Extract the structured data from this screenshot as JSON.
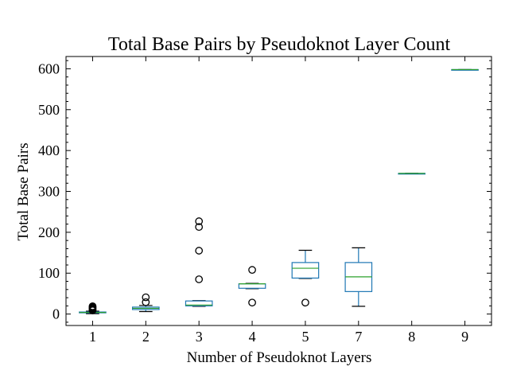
{
  "chart_data": {
    "type": "box",
    "title": "Total Base Pairs by Pseudoknot Layer Count",
    "xlabel": "Number of Pseudoknot Layers",
    "ylabel": "Total Base Pairs",
    "ylim": [
      -28,
      630
    ],
    "yticks": [
      0,
      100,
      200,
      300,
      400,
      500,
      600
    ],
    "grid": false,
    "colors": {
      "box": "#1f77b4",
      "median": "#2ca02c",
      "whisker": "#000000",
      "flier": "#000000"
    },
    "categories": [
      "1",
      "2",
      "3",
      "4",
      "5",
      "7",
      "8",
      "9"
    ],
    "boxes": [
      {
        "category": "1",
        "whislo": 1,
        "q1": 3,
        "med": 4,
        "q3": 5,
        "whishi": 7,
        "fliers": [
          9,
          11,
          13,
          15,
          17,
          19
        ]
      },
      {
        "category": "2",
        "whislo": 6,
        "q1": 11,
        "med": 14,
        "q3": 17,
        "whishi": 21,
        "fliers": [
          29,
          41
        ]
      },
      {
        "category": "3",
        "whislo": 19,
        "q1": 20,
        "med": 22,
        "q3": 32,
        "whishi": 33,
        "fliers": [
          85,
          155,
          213,
          227
        ]
      },
      {
        "category": "4",
        "whislo": 62,
        "q1": 63,
        "med": 74,
        "q3": 74,
        "whishi": 75,
        "fliers": [
          28,
          108
        ]
      },
      {
        "category": "5",
        "whislo": 87,
        "q1": 88,
        "med": 112,
        "q3": 126,
        "whishi": 156,
        "fliers": [
          28
        ]
      },
      {
        "category": "7",
        "whislo": 19,
        "q1": 55,
        "med": 91,
        "q3": 126,
        "whishi": 162,
        "fliers": []
      },
      {
        "category": "8",
        "whislo": 344,
        "q1": 344,
        "med": 344,
        "q3": 344,
        "whishi": 344,
        "fliers": []
      },
      {
        "category": "9",
        "whislo": 598,
        "q1": 598,
        "med": 598,
        "q3": 598,
        "whishi": 598,
        "fliers": []
      }
    ]
  }
}
